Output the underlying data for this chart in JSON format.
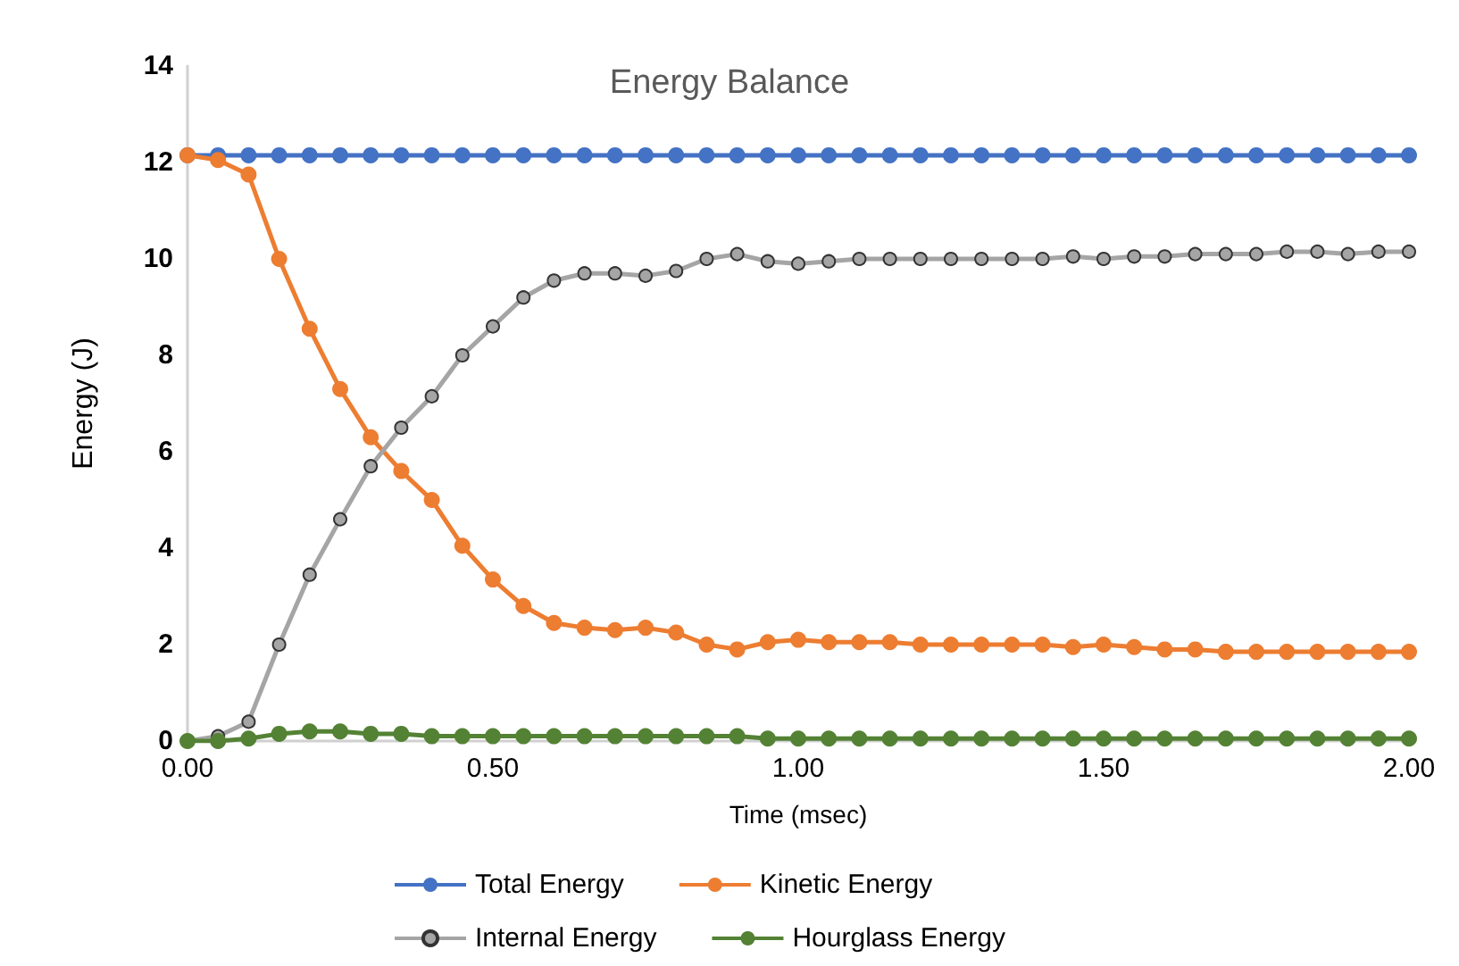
{
  "chart_data": {
    "type": "line",
    "title": "Energy Balance",
    "xlabel": "Time (msec)",
    "ylabel": "Energy (J)",
    "x": [
      0,
      0.05,
      0.1,
      0.15,
      0.2,
      0.25,
      0.3,
      0.35,
      0.4,
      0.45,
      0.5,
      0.55,
      0.6,
      0.65,
      0.7,
      0.75,
      0.8,
      0.85,
      0.9,
      0.95,
      1.0,
      1.05,
      1.1,
      1.15,
      1.2,
      1.25,
      1.3,
      1.35,
      1.4,
      1.45,
      1.5,
      1.55,
      1.6,
      1.65,
      1.7,
      1.75,
      1.8,
      1.85,
      1.9,
      1.95,
      2.0
    ],
    "xlim": [
      0,
      2
    ],
    "xticks": [
      {
        "value": 0,
        "label": "0.00"
      },
      {
        "value": 0.5,
        "label": "0.50"
      },
      {
        "value": 1,
        "label": "1.00"
      },
      {
        "value": 1.5,
        "label": "1.50"
      },
      {
        "value": 2,
        "label": "2.00"
      }
    ],
    "ylim": [
      0,
      14
    ],
    "yticks": [
      0,
      2,
      4,
      6,
      8,
      10,
      12,
      14
    ],
    "grid": false,
    "legend": "bottom",
    "marker": "circle",
    "line_style": "solid",
    "series": [
      {
        "name": "Total Energy",
        "color": "#4472c4",
        "values": [
          12.15,
          12.15,
          12.15,
          12.15,
          12.15,
          12.15,
          12.15,
          12.15,
          12.15,
          12.15,
          12.15,
          12.15,
          12.15,
          12.15,
          12.15,
          12.15,
          12.15,
          12.15,
          12.15,
          12.15,
          12.15,
          12.15,
          12.15,
          12.15,
          12.15,
          12.15,
          12.15,
          12.15,
          12.15,
          12.15,
          12.15,
          12.15,
          12.15,
          12.15,
          12.15,
          12.15,
          12.15,
          12.15,
          12.15,
          12.15,
          12.15
        ]
      },
      {
        "name": "Kinetic Energy",
        "color": "#ed7d31",
        "values": [
          12.15,
          12.05,
          11.75,
          10.0,
          8.55,
          7.3,
          6.3,
          5.6,
          5.0,
          4.05,
          3.35,
          2.8,
          2.45,
          2.35,
          2.3,
          2.35,
          2.25,
          2.0,
          1.9,
          2.05,
          2.1,
          2.05,
          2.05,
          2.05,
          2.0,
          2.0,
          2.0,
          2.0,
          2.0,
          1.95,
          2.0,
          1.95,
          1.9,
          1.9,
          1.85,
          1.85,
          1.85,
          1.85,
          1.85,
          1.85,
          1.85
        ]
      },
      {
        "name": "Internal Energy",
        "color": "#a5a5a5",
        "values": [
          0,
          0.1,
          0.4,
          2.0,
          3.45,
          4.6,
          5.7,
          6.5,
          7.15,
          8.0,
          8.6,
          9.2,
          9.55,
          9.7,
          9.7,
          9.65,
          9.75,
          10.0,
          10.1,
          9.95,
          9.9,
          9.95,
          10.0,
          10.0,
          10.0,
          10.0,
          10.0,
          10.0,
          10.0,
          10.05,
          10.0,
          10.05,
          10.05,
          10.1,
          10.1,
          10.1,
          10.15,
          10.15,
          10.1,
          10.15,
          10.15
        ]
      },
      {
        "name": "Hourglass Energy",
        "color": "#548235",
        "values": [
          0,
          0,
          0.05,
          0.15,
          0.2,
          0.2,
          0.15,
          0.15,
          0.1,
          0.1,
          0.1,
          0.1,
          0.1,
          0.1,
          0.1,
          0.1,
          0.1,
          0.1,
          0.1,
          0.05,
          0.05,
          0.05,
          0.05,
          0.05,
          0.05,
          0.05,
          0.05,
          0.05,
          0.05,
          0.05,
          0.05,
          0.05,
          0.05,
          0.05,
          0.05,
          0.05,
          0.05,
          0.05,
          0.05,
          0.05,
          0.05
        ]
      }
    ]
  }
}
